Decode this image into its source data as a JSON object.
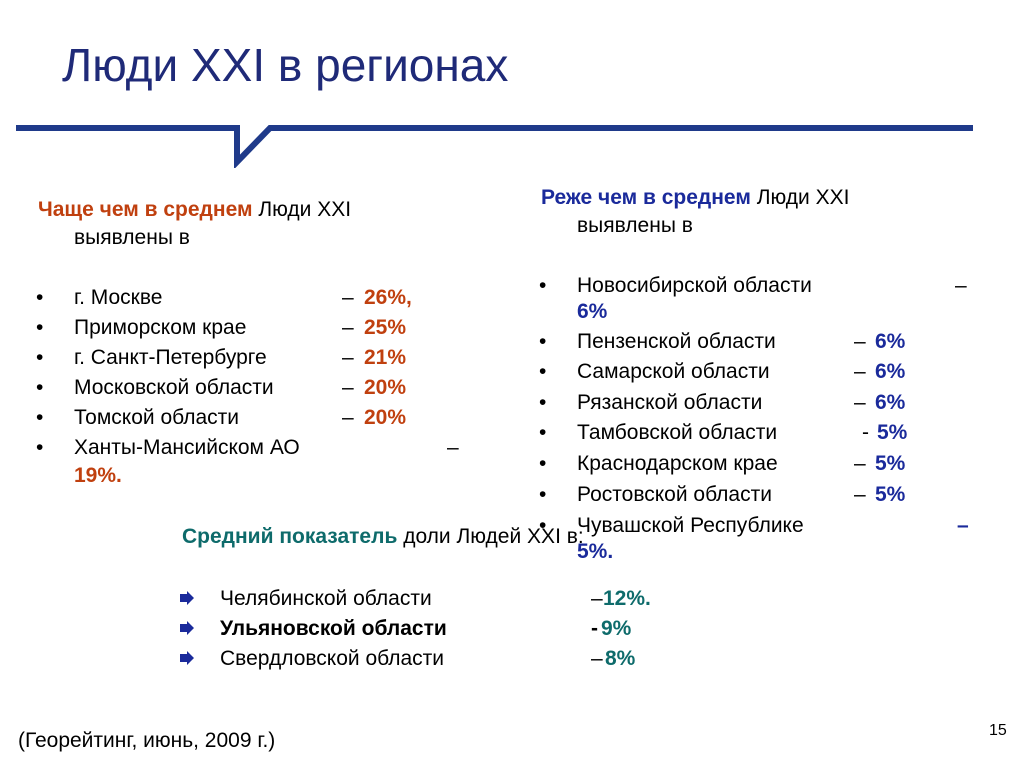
{
  "title": "Люди XXI в регионах",
  "left": {
    "heading_bold": "Чаще чем в среднем",
    "heading_rest": " Люди XXI",
    "heading_line2": "выявлены в",
    "items": [
      {
        "bullet": "•",
        "name": "г. Москве",
        "dash": "–",
        "value": "26%,"
      },
      {
        "bullet": "•",
        "name": "Приморском крае",
        "dash": "–",
        "value": "25%"
      },
      {
        "bullet": "•",
        "name": "г. Санкт-Петербурге",
        "dash": "–",
        "value": "21%"
      },
      {
        "bullet": "•",
        "name": "Московской области",
        "dash": "–",
        "value": "20%"
      },
      {
        "bullet": "•",
        "name": "Томской области",
        "dash": "–",
        "value": "20%"
      },
      {
        "bullet": "•",
        "name": "Ханты-Мансийском АО",
        "dash": "–",
        "value": "19%."
      }
    ]
  },
  "right": {
    "heading_bold": "Реже  чем в среднем",
    "heading_rest": " Люди XXI",
    "heading_line2": "выявлены в",
    "items": [
      {
        "bullet": "•",
        "name": "Новосибирской области",
        "dash": "–",
        "value": "6%"
      },
      {
        "bullet": "•",
        "name": "Пензенской области",
        "dash": "–",
        "value": "6%"
      },
      {
        "bullet": "•",
        "name": "Самарской области",
        "dash": "–",
        "value": "6%"
      },
      {
        "bullet": "•",
        "name": "Рязанской области",
        "dash": "–",
        "value": "6%"
      },
      {
        "bullet": "•",
        "name": "Тамбовской области",
        "dash": "-",
        "value": "5%"
      },
      {
        "bullet": "•",
        "name": "Краснодарском крае",
        "dash": "–",
        "value": "5%"
      },
      {
        "bullet": "•",
        "name": "Ростовской  области",
        "dash": "–",
        "value": "5%"
      },
      {
        "bullet": "•",
        "name": "Чувашской Республике",
        "dash": "–",
        "value": "5%."
      }
    ]
  },
  "middle": {
    "heading_bold": "Средний показатель",
    "heading_rest": " доли Людей XXI в:",
    "items": [
      {
        "name": "Челябинской  области",
        "dash": "–",
        "value": "12%."
      },
      {
        "name": "Ульяновской области",
        "dash": "-",
        "value": " 9%"
      },
      {
        "name": "Свердловской области",
        "dash": "–",
        "value": " 8%"
      }
    ]
  },
  "footer": {
    "source": "(Георейтинг, июнь, 2009 г.)",
    "page_number": "15"
  },
  "colors": {
    "title": "#1f2a78",
    "divider": "#1f3a8a",
    "left_accent": "#c0400f",
    "right_accent": "#1a2a9b",
    "middle_accent": "#0e6b6b"
  }
}
